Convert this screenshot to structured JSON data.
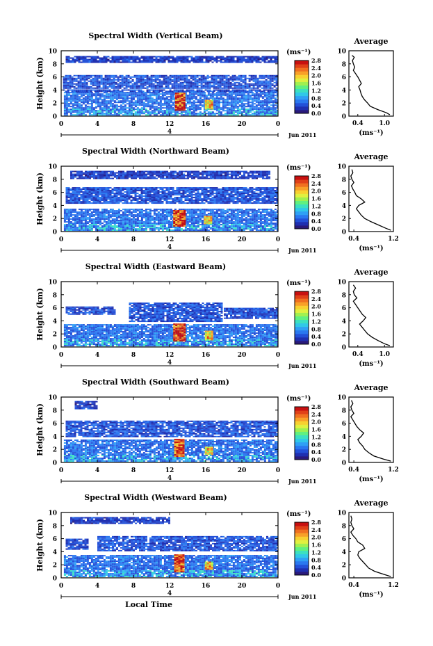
{
  "chart_data": [
    {
      "type": "heatmap",
      "title": "Spectral Width (Vertical Beam)",
      "ylabel": "Height (km)",
      "ylim": [
        0,
        10
      ],
      "y_ticks": [
        "0",
        "2",
        "4",
        "6",
        "8",
        "10"
      ],
      "xlim": [
        0,
        24
      ],
      "x_ticks": [
        "0",
        "4",
        "8",
        "12",
        "16",
        "20",
        "0"
      ],
      "date_marker": "4",
      "date_label": "Jun 2011",
      "colorbar": {
        "unit": "(ms⁻¹)",
        "ticks": [
          "0.0",
          "0.4",
          "0.8",
          "1.2",
          "1.6",
          "2.0",
          "2.4",
          "2.8"
        ]
      },
      "cloud": [
        {
          "x0": 0.3,
          "x1": 24,
          "y0": 0.2,
          "y1": 3.7,
          "level": 0.55
        },
        {
          "x0": 0.2,
          "x1": 24,
          "y0": 3.7,
          "y1": 4.1,
          "level": 0.38
        },
        {
          "x0": 0.2,
          "x1": 24,
          "y0": 4.3,
          "y1": 6.3,
          "level": 0.42
        },
        {
          "x0": 0.5,
          "x1": 24,
          "y0": 8.3,
          "y1": 9.2,
          "level": 0.3
        },
        {
          "x0": 12.6,
          "x1": 13.6,
          "y0": 1.0,
          "y1": 3.6,
          "level": 2.6
        },
        {
          "x0": 15.9,
          "x1": 16.7,
          "y0": 1.2,
          "y1": 2.5,
          "level": 2.0
        }
      ],
      "profile": {
        "title": "Average",
        "xlabel": "(ms⁻¹)",
        "xlim": [
          0.2,
          1.2
        ],
        "x_ticks": [
          "0.4",
          "1.0"
        ],
        "x_tick_values": [
          0.4,
          1.0
        ],
        "y_ticks": [
          "0",
          "2",
          "4",
          "6",
          "8",
          "10"
        ],
        "heights": [
          0.2,
          0.5,
          1.0,
          1.5,
          2.0,
          2.5,
          3.0,
          3.5,
          4.0,
          4.5,
          5.0,
          5.5,
          6.0,
          6.5,
          7.0,
          7.5,
          8.0,
          8.5,
          9.0,
          9.3
        ],
        "values": [
          1.12,
          1.05,
          0.85,
          0.68,
          0.62,
          0.55,
          0.5,
          0.47,
          0.45,
          0.42,
          0.48,
          0.44,
          0.4,
          0.35,
          0.3,
          0.33,
          0.3,
          0.28,
          0.32,
          0.27
        ]
      }
    },
    {
      "type": "heatmap",
      "title": "Spectral Width (Northward Beam)",
      "ylabel": "Height (km)",
      "ylim": [
        0,
        10
      ],
      "y_ticks": [
        "0",
        "2",
        "4",
        "6",
        "8",
        "10"
      ],
      "xlim": [
        0,
        24
      ],
      "x_ticks": [
        "0",
        "4",
        "8",
        "12",
        "16",
        "20",
        "0"
      ],
      "date_marker": "4",
      "date_label": "Jun 2011",
      "colorbar": {
        "unit": "(ms⁻¹)",
        "ticks": [
          "0.0",
          "0.4",
          "0.8",
          "1.2",
          "1.6",
          "2.0",
          "2.4",
          "2.8"
        ]
      },
      "cloud": [
        {
          "x0": 0.3,
          "x1": 24,
          "y0": 0.2,
          "y1": 3.5,
          "level": 0.55
        },
        {
          "x0": 0.5,
          "x1": 24,
          "y0": 4.3,
          "y1": 6.8,
          "level": 0.42
        },
        {
          "x0": 1.0,
          "x1": 23,
          "y0": 8.2,
          "y1": 9.3,
          "level": 0.3
        },
        {
          "x0": 12.4,
          "x1": 13.6,
          "y0": 0.9,
          "y1": 3.3,
          "level": 2.6
        },
        {
          "x0": 15.8,
          "x1": 16.6,
          "y0": 1.3,
          "y1": 2.4,
          "level": 2.0
        }
      ],
      "profile": {
        "title": "Average",
        "xlabel": "(ms⁻¹)",
        "xlim": [
          0.3,
          1.2
        ],
        "x_ticks": [
          "0.4",
          "1.2"
        ],
        "x_tick_values": [
          0.4,
          1.2
        ],
        "y_ticks": [
          "0",
          "2",
          "4",
          "6",
          "8",
          "10"
        ],
        "heights": [
          0.2,
          0.5,
          1.0,
          1.5,
          2.0,
          2.5,
          3.0,
          3.5,
          4.0,
          4.5,
          5.0,
          5.5,
          6.0,
          6.5,
          7.0,
          7.5,
          8.0,
          8.5,
          9.0,
          9.5
        ],
        "values": [
          1.15,
          1.05,
          0.9,
          0.75,
          0.62,
          0.55,
          0.5,
          0.45,
          0.5,
          0.62,
          0.55,
          0.45,
          0.42,
          0.38,
          0.35,
          0.4,
          0.36,
          0.34,
          0.38,
          0.36
        ]
      }
    },
    {
      "type": "heatmap",
      "title": "Spectral Width (Eastward Beam)",
      "ylabel": "Height (km)",
      "ylim": [
        0,
        10
      ],
      "y_ticks": [
        "0",
        "2",
        "4",
        "6",
        "8",
        "10"
      ],
      "xlim": [
        0,
        24
      ],
      "x_ticks": [
        "0",
        "4",
        "8",
        "12",
        "16",
        "20",
        "0"
      ],
      "date_marker": "4",
      "date_label": "Jun 2011",
      "colorbar": {
        "unit": "(ms⁻¹)",
        "ticks": [
          "0.0",
          "0.4",
          "0.8",
          "1.2",
          "1.6",
          "2.0",
          "2.4",
          "2.8"
        ]
      },
      "cloud": [
        {
          "x0": 0.3,
          "x1": 24,
          "y0": 0.2,
          "y1": 3.5,
          "level": 0.55
        },
        {
          "x0": 7.5,
          "x1": 17.8,
          "y0": 4.0,
          "y1": 6.8,
          "level": 0.42
        },
        {
          "x0": 0.5,
          "x1": 6.0,
          "y0": 5.0,
          "y1": 6.2,
          "level": 0.38
        },
        {
          "x0": 18.0,
          "x1": 24,
          "y0": 4.5,
          "y1": 6.0,
          "level": 0.4
        },
        {
          "x0": 12.4,
          "x1": 13.6,
          "y0": 0.9,
          "y1": 3.6,
          "level": 2.6
        },
        {
          "x0": 15.9,
          "x1": 16.7,
          "y0": 1.2,
          "y1": 2.5,
          "level": 2.0
        }
      ],
      "profile": {
        "title": "Average",
        "xlabel": "(ms⁻¹)",
        "xlim": [
          0.2,
          1.2
        ],
        "x_ticks": [
          "0.4",
          "1.0"
        ],
        "x_tick_values": [
          0.4,
          1.0
        ],
        "y_ticks": [
          "0",
          "2",
          "4",
          "6",
          "8",
          "10"
        ],
        "heights": [
          0.2,
          0.5,
          1.0,
          1.5,
          2.0,
          2.5,
          3.0,
          3.5,
          4.0,
          4.5,
          5.0,
          5.5,
          6.0,
          6.5,
          7.0,
          7.5,
          8.0,
          8.5,
          9.0,
          9.5
        ],
        "values": [
          1.12,
          1.0,
          0.85,
          0.72,
          0.62,
          0.56,
          0.5,
          0.44,
          0.52,
          0.58,
          0.5,
          0.45,
          0.4,
          0.35,
          0.3,
          0.38,
          0.32,
          0.3,
          0.35,
          0.3
        ]
      }
    },
    {
      "type": "heatmap",
      "title": "Spectral Width (Southward Beam)",
      "ylabel": "Height (km)",
      "ylim": [
        0,
        10
      ],
      "y_ticks": [
        "0",
        "2",
        "4",
        "6",
        "8",
        "10"
      ],
      "xlim": [
        0,
        24
      ],
      "x_ticks": [
        "0",
        "4",
        "8",
        "12",
        "16",
        "20",
        "0"
      ],
      "date_marker": "4",
      "date_label": "Jun 2011",
      "colorbar": {
        "unit": "(ms⁻¹)",
        "ticks": [
          "0.0",
          "0.4",
          "0.8",
          "1.2",
          "1.6",
          "2.0",
          "2.4",
          "2.8"
        ]
      },
      "cloud": [
        {
          "x0": 0.3,
          "x1": 24,
          "y0": 0.2,
          "y1": 3.5,
          "level": 0.55
        },
        {
          "x0": 0.5,
          "x1": 24,
          "y0": 3.9,
          "y1": 6.4,
          "level": 0.42
        },
        {
          "x0": 1.5,
          "x1": 4.0,
          "y0": 8.3,
          "y1": 9.4,
          "level": 0.3
        },
        {
          "x0": 12.5,
          "x1": 13.6,
          "y0": 0.9,
          "y1": 3.6,
          "level": 2.6
        },
        {
          "x0": 15.9,
          "x1": 16.7,
          "y0": 1.3,
          "y1": 2.4,
          "level": 2.0
        }
      ],
      "profile": {
        "title": "Average",
        "xlabel": "(ms⁻¹)",
        "xlim": [
          0.3,
          1.2
        ],
        "x_ticks": [
          "0.4",
          "1.2"
        ],
        "x_tick_values": [
          0.4,
          1.2
        ],
        "y_ticks": [
          "0",
          "2",
          "4",
          "6",
          "8",
          "10"
        ],
        "heights": [
          0.2,
          0.5,
          1.0,
          1.5,
          2.0,
          2.5,
          3.0,
          3.5,
          4.0,
          4.5,
          5.0,
          5.5,
          6.0,
          6.5,
          7.0,
          7.5,
          8.0,
          8.5,
          9.0,
          9.5
        ],
        "values": [
          1.15,
          1.0,
          0.8,
          0.7,
          0.62,
          0.58,
          0.52,
          0.48,
          0.55,
          0.6,
          0.52,
          0.46,
          0.42,
          0.38,
          0.34,
          0.4,
          0.36,
          0.34,
          0.38,
          0.35
        ]
      }
    },
    {
      "type": "heatmap",
      "title": "Spectral Width (Westward Beam)",
      "ylabel": "Height (km)",
      "ylim": [
        0,
        10
      ],
      "y_ticks": [
        "0",
        "2",
        "4",
        "6",
        "8",
        "10"
      ],
      "xlim": [
        0,
        24
      ],
      "x_ticks": [
        "0",
        "4",
        "8",
        "12",
        "16",
        "20",
        "0"
      ],
      "date_marker": "4",
      "date_label": "Jun 2011",
      "xlabel": "Local Time",
      "colorbar": {
        "unit": "(ms⁻¹)",
        "ticks": [
          "0.0",
          "0.4",
          "0.8",
          "1.2",
          "1.6",
          "2.0",
          "2.4",
          "2.8"
        ]
      },
      "cloud": [
        {
          "x0": 0.3,
          "x1": 24,
          "y0": 0.2,
          "y1": 3.5,
          "level": 0.55
        },
        {
          "x0": 4.0,
          "x1": 24,
          "y0": 4.1,
          "y1": 6.4,
          "level": 0.42
        },
        {
          "x0": 0.5,
          "x1": 3.0,
          "y0": 4.5,
          "y1": 6.0,
          "level": 0.38
        },
        {
          "x0": 1.0,
          "x1": 12.0,
          "y0": 8.3,
          "y1": 9.3,
          "level": 0.3
        },
        {
          "x0": 12.5,
          "x1": 13.6,
          "y0": 0.9,
          "y1": 3.6,
          "level": 2.6
        },
        {
          "x0": 15.9,
          "x1": 16.7,
          "y0": 1.3,
          "y1": 2.5,
          "level": 2.0
        }
      ],
      "profile": {
        "title": "Average",
        "xlabel": "(ms⁻¹)",
        "xlim": [
          0.3,
          1.2
        ],
        "x_ticks": [
          "0.4",
          "1.2"
        ],
        "x_tick_values": [
          0.4,
          1.2
        ],
        "y_ticks": [
          "0",
          "2",
          "4",
          "6",
          "8",
          "10"
        ],
        "heights": [
          0.2,
          0.5,
          1.0,
          1.5,
          2.0,
          2.5,
          3.0,
          3.5,
          4.0,
          4.5,
          5.0,
          5.5,
          6.0,
          6.5,
          7.0,
          7.5,
          8.0,
          8.5,
          9.0,
          9.5
        ],
        "values": [
          1.15,
          1.02,
          0.82,
          0.7,
          0.64,
          0.58,
          0.52,
          0.48,
          0.5,
          0.62,
          0.58,
          0.48,
          0.44,
          0.38,
          0.34,
          0.4,
          0.36,
          0.34,
          0.36,
          0.34
        ]
      }
    }
  ],
  "colormap": [
    "#2a1a7a",
    "#1f2fb0",
    "#2350d8",
    "#2a78f0",
    "#2fa0f5",
    "#30c8e8",
    "#3ce0c0",
    "#60f080",
    "#a0f050",
    "#e0f040",
    "#f8d030",
    "#f8a028",
    "#f07020",
    "#e04018",
    "#c81010"
  ]
}
